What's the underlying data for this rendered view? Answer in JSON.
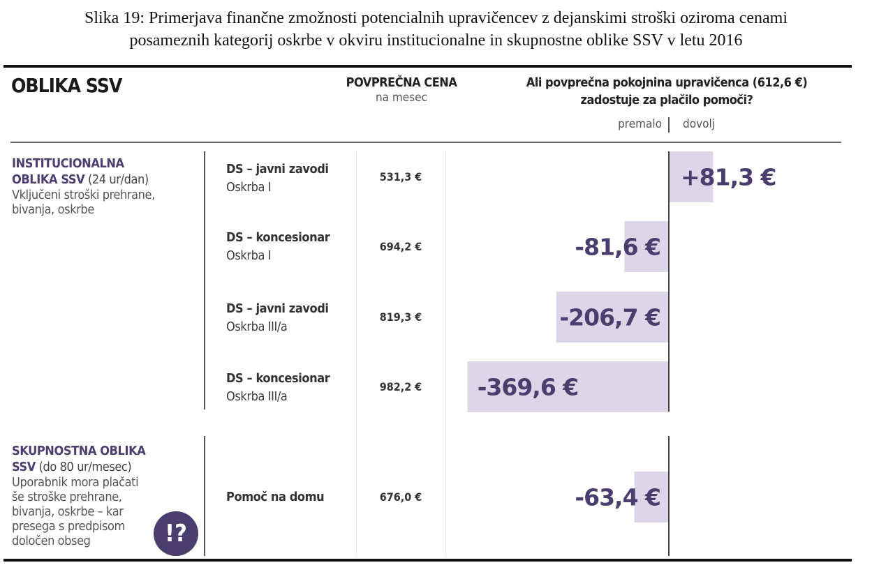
{
  "caption": {
    "line1": "Slika 19: Primerjava finančne zmožnosti potencialnih upravičencev z dejanskimi stroški oziroma cenami",
    "line2": "posameznih kategorij oskrbe v okviru institucionalne in skupnostne oblike SSV v letu 2016"
  },
  "header": {
    "oblika": "OBLIKA SSV",
    "cena_title": "POVPREČNA CENA",
    "cena_sub": "na mesec",
    "question_line1": "Ali povprečna pokojnina upravičenca (612,6 €)",
    "question_line2": "zadostuje za plačilo pomoči?",
    "premalo": "premalo",
    "dovolj": "dovolj"
  },
  "groups": [
    {
      "title_bold1": "INSTITUCIONALNA",
      "title_bold2": "OBLIKA SSV",
      "title_rest": " (24 ur/dan)",
      "desc": [
        "Vključeni stroški prehrane,",
        "bivanja, oskrbe"
      ]
    },
    {
      "title_bold1": "SKUPNOSTNA OBLIKA",
      "title_bold2": "SSV",
      "title_rest": " (do 80 ur/mesec)",
      "desc": [
        "Uporabnik mora plačati",
        "še stroške prehrane,",
        "bivanja, oskrbe – kar",
        "presega s predpisom",
        "določen obseg"
      ],
      "badge": "!?"
    }
  ],
  "chart_data": {
    "type": "bar",
    "orientation": "horizontal-diverging",
    "reference_value": 612.6,
    "categories": [
      {
        "name": "DS – javni zavodi",
        "sub": "Oskrba I",
        "price": "531,3 €"
      },
      {
        "name": "DS – koncesionar",
        "sub": "Oskrba I",
        "price": "694,2 €"
      },
      {
        "name": "DS – javni zavodi",
        "sub": "Oskrba III/a",
        "price": "819,3 €"
      },
      {
        "name": "DS – koncesionar",
        "sub": "Oskrba III/a",
        "price": "982,2 €"
      },
      {
        "name": "Pomoč na domu",
        "sub": "",
        "price": "676,0 €"
      }
    ],
    "values": [
      81.3,
      -81.6,
      -206.7,
      -369.6,
      -63.4
    ],
    "labels": [
      "+81,3 €",
      "-81,6 €",
      "-206,7 €",
      "-369,6 €",
      "-63,4 €"
    ],
    "colors": {
      "bar": "#dcd6e8",
      "label": "#4b3e6e"
    }
  }
}
